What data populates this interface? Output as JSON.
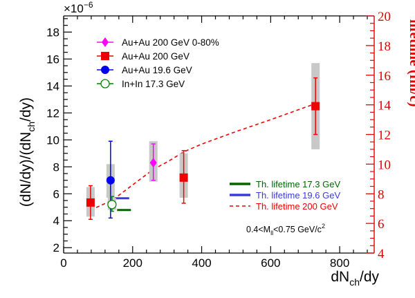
{
  "chart_data": {
    "type": "scatter",
    "exponent_label": "×10",
    "exponent_power": "−6",
    "ylabel": {
      "a": "(dN/dy)/(dN",
      "sub": "ch",
      "b": "/dy)"
    },
    "xlabel": {
      "a": "dN",
      "sub": "ch",
      "b": "/dy"
    },
    "ylabel_right": "lifetime (fm/c)",
    "xlim": [
      0,
      900
    ],
    "ylim": [
      1.6,
      19.2
    ],
    "ylim_right": [
      4,
      20
    ],
    "x_ticks": [
      "0",
      "200",
      "400",
      "600",
      "800"
    ],
    "y_ticks": [
      "2",
      "4",
      "6",
      "8",
      "10",
      "12",
      "14",
      "16",
      "18"
    ],
    "y_ticks_right": [
      "4",
      "6",
      "8",
      "10",
      "12",
      "14",
      "16",
      "18",
      "20"
    ],
    "colors": {
      "auau200_central": "#ff00ff",
      "auau200": "#ee0000",
      "auau196": "#0000ee",
      "inin173": "#008000",
      "syst": "#c8c8c8",
      "axis_right": "#e00000"
    },
    "series": [
      {
        "name": "Au+Au 200 GeV 0-80%",
        "marker": "diamond",
        "color": "#ff00ff",
        "points": [
          {
            "x": 260,
            "y": 8.3,
            "yerr_low": 7.0,
            "yerr_high": 9.7,
            "sys_low": 6.9,
            "sys_high": 9.9
          }
        ]
      },
      {
        "name": "Au+Au 200 GeV",
        "marker": "square",
        "color": "#ee0000",
        "points": [
          {
            "x": 78,
            "y": 5.35,
            "yerr_low": 4.1,
            "yerr_high": 6.6,
            "sys_low": 4.3,
            "sys_high": 6.5
          },
          {
            "x": 348,
            "y": 7.2,
            "yerr_low": 5.3,
            "yerr_high": 9.2,
            "sys_low": 5.7,
            "sys_high": 9.0
          },
          {
            "x": 730,
            "y": 12.5,
            "yerr_low": 10.4,
            "yerr_high": 14.6,
            "sys_low": 9.3,
            "sys_high": 15.7
          }
        ]
      },
      {
        "name": "Au+Au 19.6 GeV",
        "marker": "circle",
        "color": "#0000ee",
        "points": [
          {
            "x": 136,
            "y": 7.0,
            "yerr_low": 4.2,
            "yerr_high": 9.9,
            "sys_low": 5.7,
            "sys_high": 8.2
          }
        ]
      },
      {
        "name": "In+In 17.3 GeV",
        "marker": "open-circle",
        "color": "#008000",
        "points": [
          {
            "x": 140,
            "y": 5.2,
            "yerr_low": 4.7,
            "yerr_high": 5.8,
            "sys_low": 4.8,
            "sys_high": 5.7
          }
        ]
      }
    ],
    "theory_lines": [
      {
        "name": "Th. lifetime 17.3 GeV",
        "color": "#006400",
        "style": "solid",
        "x": [
          155,
          195
        ],
        "lifetime": [
          6.9,
          6.9
        ]
      },
      {
        "name": "Th. lifetime 19.6 GeV",
        "color": "#3a3ad8",
        "style": "solid",
        "x": [
          148,
          190
        ],
        "lifetime": [
          7.7,
          7.7
        ]
      },
      {
        "name": "Th. lifetime 200 GeV",
        "color": "#ee0000",
        "style": "dashed",
        "x": [
          78,
          140,
          200,
          260,
          300,
          350,
          400,
          500,
          600,
          720
        ],
        "lifetime": [
          6.9,
          7.55,
          8.6,
          9.65,
          10.15,
          10.85,
          11.35,
          12.2,
          13.0,
          14.0
        ]
      }
    ],
    "legend_top": [
      "Au+Au 200 GeV 0-80%",
      "Au+Au 200 GeV",
      "Au+Au 19.6 GeV",
      "In+In 17.3 GeV"
    ],
    "legend_top_position": "top-left",
    "legend_bottom": [
      "Th. lifetime 17.3 GeV",
      "Th. lifetime 19.6 GeV",
      "Th. lifetime 200 GeV"
    ],
    "legend_bottom_position": "bottom-right",
    "annotation": {
      "a": "0.4<M",
      "sub": "ll",
      "b": "<0.75 GeV/c",
      "sup": "2"
    },
    "grid": false
  }
}
